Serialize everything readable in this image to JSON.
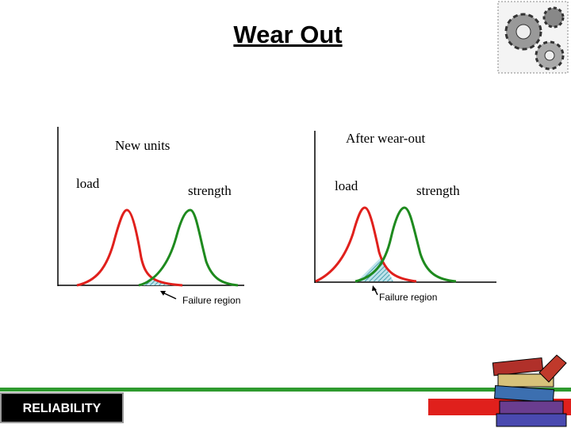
{
  "title": "Wear Out",
  "panels": [
    {
      "heading": "New units",
      "load_label": "load",
      "strength_label": "strength",
      "annotation": "Failure region"
    },
    {
      "heading": "After wear-out",
      "load_label": "load",
      "strength_label": "strength",
      "annotation": "Failure region"
    }
  ],
  "footer": {
    "label": "RELIABILITY"
  }
}
